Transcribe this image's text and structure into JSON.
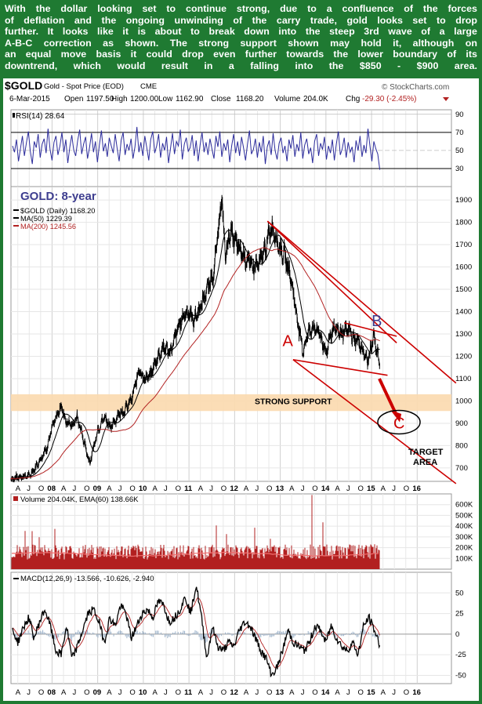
{
  "commentary": [
    "With the dollar looking set to continue strong, due to a confluence of the forces",
    "of deflation and the ongoing unwinding of the carry trade, gold looks set to drop",
    "further. It looks like it is about to break down into the steep 3rd wave of a large",
    "A-B-C correction as shown. The strong support shown may hold it, although on",
    "an equal move basis it could drop even further towards the lower boundary of its",
    "downtrend, which would result in a falling into the $850 - $900 area."
  ],
  "header": {
    "symbol": "$GOLD",
    "name": "Gold - Spot Price (EOD)",
    "exchange": "CME",
    "date": "6-Mar-2015",
    "open_label": "Open",
    "open": "1197.50",
    "high_label": "High",
    "high": "1200.00",
    "low_label": "Low",
    "low": "1162.90",
    "close_label": "Close",
    "close": "1168.20",
    "volume_label": "Volume",
    "volume": "204.0K",
    "chg_label": "Chg",
    "chg": "-29.30 (-2.45%)",
    "watermark": "© StockCharts.com"
  },
  "colors": {
    "price": "#000000",
    "ma50": "#000000",
    "ma200": "#b22222",
    "annotation": "#cc0000",
    "rsi": "#2b2b9b",
    "support_band": "#fbd9ae",
    "volume_bars": "#b22020",
    "ema_line": "#f07070",
    "border": "#1f7a32"
  },
  "chart_data": [
    {
      "type": "line",
      "panel": "rsi",
      "title": "RSI(14) 28.64",
      "last": 28.64,
      "ylim": [
        10,
        95
      ],
      "yticks": [
        30,
        50,
        70,
        90
      ],
      "overbought": 70,
      "oversold": 30,
      "mid": 50,
      "values": [
        55,
        48,
        62,
        38,
        52,
        66,
        44,
        58,
        71,
        49,
        35,
        60,
        53,
        68,
        42,
        57,
        63,
        47,
        74,
        51,
        39,
        59,
        66,
        45,
        55,
        70,
        48,
        62,
        36,
        54,
        67,
        50,
        44,
        61,
        73,
        46,
        57,
        65,
        41,
        53,
        69,
        48,
        60,
        37,
        56,
        72,
        49,
        58,
        43,
        64,
        55,
        47,
        68,
        52,
        38,
        61,
        70,
        45,
        57,
        50,
        63,
        41,
        54,
        76,
        48,
        59,
        44,
        66,
        53,
        39,
        62,
        71,
        47,
        55,
        68,
        42,
        58,
        50,
        65,
        36,
        52,
        69,
        46,
        60,
        55,
        73,
        40,
        57,
        64,
        49,
        53,
        67,
        44,
        61,
        38,
        56,
        70,
        48,
        59,
        45,
        63,
        52,
        41,
        66,
        54,
        71,
        43,
        58,
        50,
        62,
        37,
        55,
        68,
        47,
        60,
        44,
        65,
        53,
        39,
        57,
        72,
        46,
        51,
        63,
        42,
        59,
        48,
        66,
        35,
        54,
        61,
        45,
        69,
        50,
        40,
        58,
        64,
        47,
        55,
        38,
        62,
        52,
        67,
        43,
        57,
        49,
        70,
        41,
        56,
        63,
        46,
        53,
        36,
        60,
        68,
        44,
        58,
        51,
        65,
        40,
        55,
        47,
        62,
        39,
        57,
        71,
        45,
        52,
        64,
        42,
        59,
        48,
        54,
        37,
        61,
        50,
        66,
        43,
        56,
        47,
        74,
        55,
        38,
        60,
        52,
        46,
        28.64
      ]
    },
    {
      "type": "line",
      "panel": "price",
      "title": "GOLD: 8-year",
      "legend": [
        {
          "label": "$GOLD (Daily) 1168.20",
          "role": "price"
        },
        {
          "label": "MA(50) 1229.39",
          "role": "ma50"
        },
        {
          "label": "MA(200) 1245.56",
          "role": "ma200"
        }
      ],
      "ylim": [
        640,
        1960
      ],
      "yticks": [
        700,
        800,
        900,
        1000,
        1100,
        1200,
        1300,
        1400,
        1500,
        1600,
        1700,
        1800,
        1900
      ],
      "x_start": 2007.1,
      "x_end": 2016.75,
      "x": [
        2007.1,
        2007.3,
        2007.5,
        2007.6,
        2007.75,
        2007.9,
        2008.0,
        2008.1,
        2008.2,
        2008.3,
        2008.45,
        2008.55,
        2008.65,
        2008.75,
        2008.83,
        2008.92,
        2009.0,
        2009.15,
        2009.3,
        2009.45,
        2009.6,
        2009.75,
        2009.92,
        2010.0,
        2010.15,
        2010.3,
        2010.45,
        2010.6,
        2010.75,
        2010.9,
        2011.0,
        2011.1,
        2011.25,
        2011.4,
        2011.55,
        2011.67,
        2011.72,
        2011.8,
        2011.9,
        2012.0,
        2012.1,
        2012.25,
        2012.4,
        2012.55,
        2012.7,
        2012.8,
        2012.9,
        2013.0,
        2013.1,
        2013.2,
        2013.3,
        2013.4,
        2013.5,
        2013.6,
        2013.7,
        2013.85,
        2014.0,
        2014.1,
        2014.2,
        2014.35,
        2014.5,
        2014.6,
        2014.7,
        2014.8,
        2014.9,
        2014.95,
        2015.05,
        2015.1,
        2015.18
      ],
      "close": [
        650,
        660,
        665,
        690,
        740,
        800,
        880,
        930,
        980,
        910,
        890,
        930,
        860,
        780,
        720,
        800,
        870,
        930,
        880,
        940,
        960,
        1010,
        1150,
        1100,
        1110,
        1190,
        1240,
        1220,
        1320,
        1390,
        1400,
        1360,
        1420,
        1500,
        1580,
        1820,
        1900,
        1650,
        1760,
        1720,
        1680,
        1640,
        1600,
        1620,
        1700,
        1780,
        1740,
        1680,
        1650,
        1580,
        1470,
        1330,
        1220,
        1300,
        1330,
        1310,
        1210,
        1300,
        1330,
        1300,
        1320,
        1280,
        1270,
        1230,
        1180,
        1200,
        1290,
        1240,
        1168.2
      ],
      "ma50_note": "computed as 50-point rolling mean of daily close",
      "ma200_note": "computed as 200-point rolling mean of daily close"
    },
    {
      "type": "bar",
      "panel": "volume",
      "title": "Volume 204.04K, EMA(60) 138.66K",
      "ylim": [
        0,
        700000
      ],
      "yticks": [
        100000,
        200000,
        300000,
        400000,
        500000,
        600000
      ],
      "ytick_labels": [
        "100K",
        "200K",
        "300K",
        "400K",
        "500K",
        "600K"
      ],
      "volume_start": 2012.9,
      "ema60": 138660
    },
    {
      "type": "line",
      "panel": "macd",
      "title": "MACD(12,26,9) -13.566, -10.626, -2.940",
      "ylim": [
        -60,
        75
      ],
      "yticks": [
        -50,
        -25,
        0,
        25,
        50
      ],
      "macd": [
        5,
        -10,
        8,
        20,
        -5,
        15,
        30,
        10,
        -20,
        -25,
        10,
        -30,
        -15,
        5,
        25,
        30,
        15,
        -10,
        20,
        10,
        35,
        25,
        -5,
        10,
        25,
        30,
        20,
        40,
        35,
        15,
        20,
        30,
        45,
        25,
        60,
        20,
        -30,
        10,
        -15,
        -20,
        -10,
        -15,
        5,
        15,
        10,
        -5,
        -20,
        -30,
        -50,
        -40,
        -20,
        5,
        -10,
        -15,
        -20,
        -10,
        10,
        5,
        -10,
        10,
        -5,
        -15,
        -20,
        -10,
        -25,
        10,
        20,
        5,
        -13.566
      ],
      "signal": [
        -10.626
      ],
      "histogram": [
        -2.94
      ]
    }
  ],
  "x_axis": {
    "month_labels": [
      "A",
      "J",
      "O",
      "08",
      "A",
      "J",
      "O",
      "09",
      "A",
      "J",
      "O",
      "10",
      "A",
      "J",
      "O",
      "11",
      "A",
      "J",
      "O",
      "12",
      "A",
      "J",
      "O",
      "13",
      "A",
      "J",
      "O",
      "14",
      "A",
      "J",
      "O",
      "15",
      "A",
      "J",
      "O",
      "16"
    ]
  },
  "annotations": {
    "wave_a": "A",
    "wave_b": "B",
    "wave_c": "C",
    "support": "STRONG SUPPORT",
    "target_line1": "TARGET",
    "target_line2": "AREA"
  }
}
